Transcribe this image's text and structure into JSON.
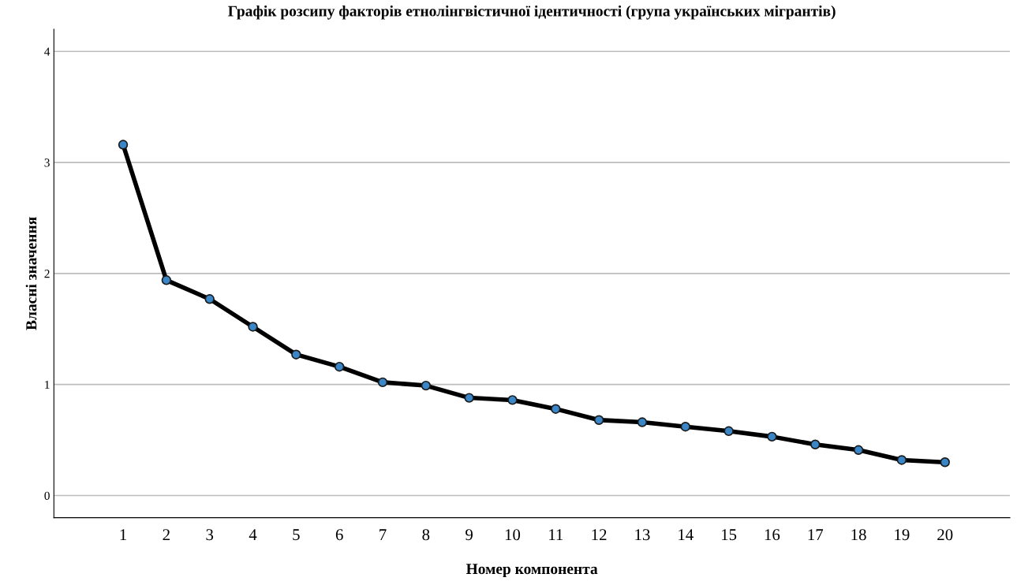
{
  "chart_data": {
    "type": "line",
    "title": "Графік розсипу факторів етнолінгвістичної ідентичності (група українських мігрантів)",
    "xlabel": "Номер компонента",
    "ylabel": "Власні значення",
    "categories": [
      "1",
      "2",
      "3",
      "4",
      "5",
      "6",
      "7",
      "8",
      "9",
      "10",
      "11",
      "12",
      "13",
      "14",
      "15",
      "16",
      "17",
      "18",
      "19",
      "20"
    ],
    "series": [
      {
        "color": "#000000",
        "colors": [
          "#3a86c6",
          "#3a86c6",
          "#3a86c6",
          "#3a86c6",
          "#3a86c6",
          "#3a86c6",
          "#3a86c6",
          "#3a86c6",
          "#3a86c6",
          "#3a86c6",
          "#3a86c6",
          "#3a86c6",
          "#3a86c6",
          "#3a86c6",
          "#3a86c6",
          "#3a86c6",
          "#3a86c6",
          "#3a86c6",
          "#3a86c6",
          "#3a86c6"
        ],
        "values": [
          3.16,
          1.94,
          1.77,
          1.52,
          1.27,
          1.16,
          1.02,
          0.99,
          0.88,
          0.86,
          0.78,
          0.68,
          0.66,
          0.62,
          0.58,
          0.53,
          0.46,
          0.41,
          0.32,
          0.3
        ]
      }
    ],
    "ylim": [
      -0.2,
      4.2
    ],
    "yticks": [
      0,
      1,
      2,
      3,
      4
    ],
    "grid": "y",
    "marker": "circle",
    "line_style": "solid",
    "legend": false
  }
}
